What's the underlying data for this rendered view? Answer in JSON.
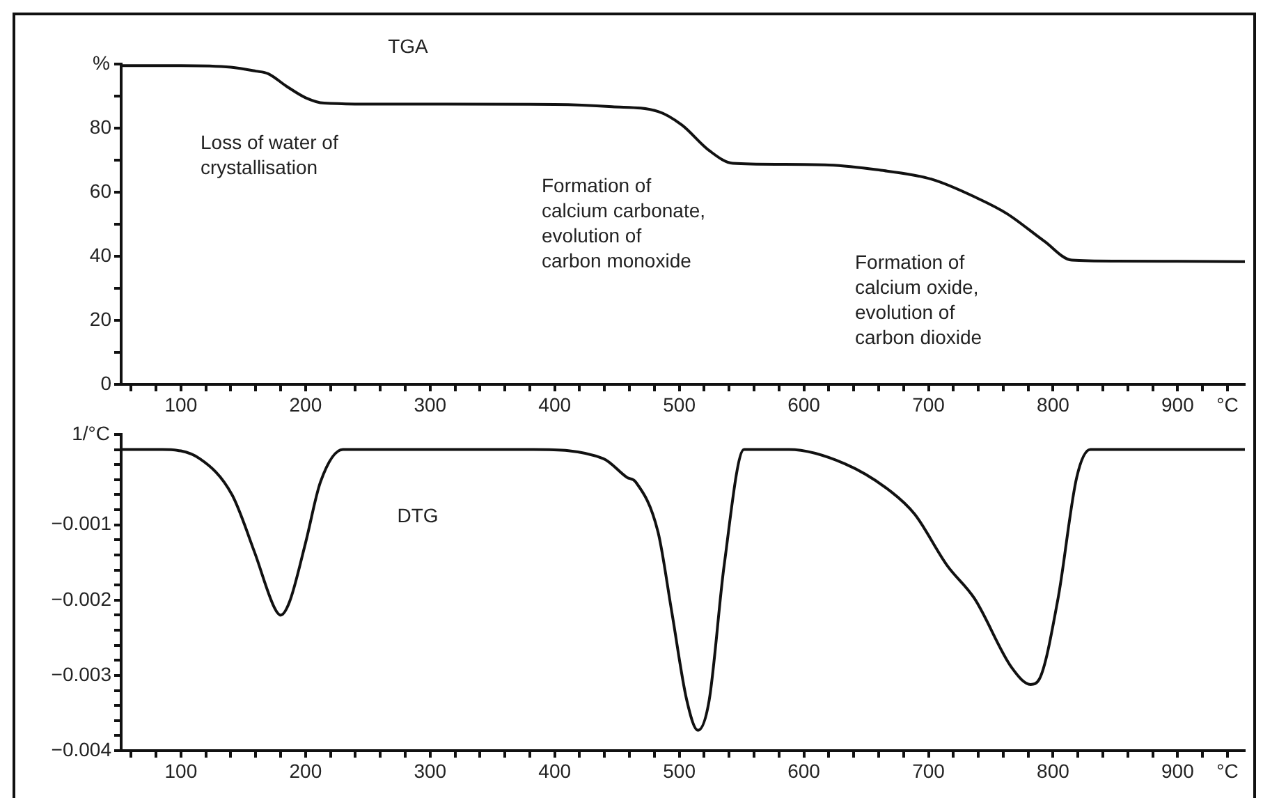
{
  "chart_data": [
    {
      "type": "line",
      "title": "TGA",
      "ylabel": "%",
      "marker": "none",
      "line_style": "solid",
      "annotations": [
        "Loss of water of\ncrystallisation",
        "Formation of\ncalcium carbonate,\nevolution of\ncarbon monoxide",
        "Formation of\ncalcium oxide,\nevolution of\ncarbon dioxide"
      ],
      "series": [
        {
          "color": "#111111",
          "x": [
            52,
            100,
            140,
            160,
            170,
            185,
            200,
            215,
            250,
            300,
            400,
            446,
            483,
            502,
            524,
            543,
            580,
            620,
            659,
            703,
            740,
            763,
            793,
            815,
            850,
            900,
            954
          ],
          "values": [
            99.5,
            99.5,
            99,
            97.8,
            97,
            93,
            89.5,
            87.8,
            87.5,
            87.5,
            87.4,
            86.7,
            85.2,
            81,
            73,
            69,
            68.7,
            68.5,
            67,
            64,
            58,
            53.3,
            44.7,
            38.8,
            38.5,
            38.4,
            38.3
          ]
        }
      ],
      "xlim": [
        52,
        954
      ],
      "ylim": [
        0,
        100
      ],
      "xticks": [
        {
          "value": 60,
          "label": null
        },
        {
          "value": 80,
          "label": null
        },
        100,
        {
          "value": 120,
          "label": null
        },
        {
          "value": 140,
          "label": null
        },
        {
          "value": 160,
          "label": null
        },
        {
          "value": 180,
          "label": null
        },
        200,
        {
          "value": 220,
          "label": null
        },
        {
          "value": 240,
          "label": null
        },
        {
          "value": 260,
          "label": null
        },
        {
          "value": 280,
          "label": null
        },
        300,
        {
          "value": 320,
          "label": null
        },
        {
          "value": 340,
          "label": null
        },
        {
          "value": 360,
          "label": null
        },
        {
          "value": 380,
          "label": null
        },
        400,
        {
          "value": 420,
          "label": null
        },
        {
          "value": 440,
          "label": null
        },
        {
          "value": 460,
          "label": null
        },
        {
          "value": 480,
          "label": null
        },
        500,
        {
          "value": 520,
          "label": null
        },
        {
          "value": 540,
          "label": null
        },
        {
          "value": 560,
          "label": null
        },
        {
          "value": 580,
          "label": null
        },
        600,
        {
          "value": 620,
          "label": null
        },
        {
          "value": 640,
          "label": null
        },
        {
          "value": 660,
          "label": null
        },
        {
          "value": 680,
          "label": null
        },
        700,
        {
          "value": 720,
          "label": null
        },
        {
          "value": 740,
          "label": null
        },
        {
          "value": 760,
          "label": null
        },
        {
          "value": 780,
          "label": null
        },
        800,
        {
          "value": 820,
          "label": null
        },
        {
          "value": 840,
          "label": null
        },
        {
          "value": 860,
          "label": null
        },
        {
          "value": 880,
          "label": null
        },
        900,
        {
          "value": 920,
          "label": null
        },
        {
          "value": 940,
          "label": "°C"
        }
      ],
      "yticks": [
        0,
        {
          "value": 10,
          "label": null
        },
        20,
        {
          "value": 30,
          "label": null
        },
        40,
        {
          "value": 50,
          "label": null
        },
        60,
        {
          "value": 70,
          "label": null
        },
        80,
        {
          "value": 90,
          "label": null
        },
        {
          "value": 100,
          "label": null
        }
      ]
    },
    {
      "type": "line",
      "title": "DTG",
      "ylabel": "1/°C",
      "marker": "none",
      "line_style": "solid",
      "series": [
        {
          "color": "#111111",
          "x": [
            52,
            85,
            115,
            141,
            159,
            175,
            180,
            187,
            200,
            212,
            230,
            300,
            383,
            439,
            458,
            465,
            483,
            494,
            506,
            515,
            524,
            536,
            552,
            588,
            633,
            670,
            689,
            715,
            737,
            767,
            782,
            789,
            804,
            819,
            830,
            900,
            954
          ],
          "values": [
            0,
            0,
            -0.00012,
            -0.0006,
            -0.00136,
            -0.0021,
            -0.0022,
            -0.00203,
            -0.00124,
            -0.00043,
            0,
            0,
            0,
            -0.00012,
            -0.00037,
            -0.00043,
            -0.0011,
            -0.00216,
            -0.00333,
            -0.00373,
            -0.00333,
            -0.00154,
            0,
            0,
            -0.00019,
            -0.00056,
            -0.00086,
            -0.00154,
            -0.00198,
            -0.0029,
            -0.00312,
            -0.00305,
            -0.00198,
            -0.00037,
            0,
            0,
            0
          ]
        }
      ],
      "xlim": [
        52,
        954
      ],
      "ylim": [
        -0.004,
        0.0002
      ],
      "xticks": [
        {
          "value": 60,
          "label": null
        },
        {
          "value": 80,
          "label": null
        },
        100,
        {
          "value": 120,
          "label": null
        },
        {
          "value": 140,
          "label": null
        },
        {
          "value": 160,
          "label": null
        },
        {
          "value": 180,
          "label": null
        },
        200,
        {
          "value": 220,
          "label": null
        },
        {
          "value": 240,
          "label": null
        },
        {
          "value": 260,
          "label": null
        },
        {
          "value": 280,
          "label": null
        },
        300,
        {
          "value": 320,
          "label": null
        },
        {
          "value": 340,
          "label": null
        },
        {
          "value": 360,
          "label": null
        },
        {
          "value": 380,
          "label": null
        },
        400,
        {
          "value": 420,
          "label": null
        },
        {
          "value": 440,
          "label": null
        },
        {
          "value": 460,
          "label": null
        },
        {
          "value": 480,
          "label": null
        },
        500,
        {
          "value": 520,
          "label": null
        },
        {
          "value": 540,
          "label": null
        },
        {
          "value": 560,
          "label": null
        },
        {
          "value": 580,
          "label": null
        },
        600,
        {
          "value": 620,
          "label": null
        },
        {
          "value": 640,
          "label": null
        },
        {
          "value": 660,
          "label": null
        },
        {
          "value": 680,
          "label": null
        },
        700,
        {
          "value": 720,
          "label": null
        },
        {
          "value": 740,
          "label": null
        },
        {
          "value": 760,
          "label": null
        },
        {
          "value": 780,
          "label": null
        },
        800,
        {
          "value": 820,
          "label": null
        },
        {
          "value": 840,
          "label": null
        },
        {
          "value": 860,
          "label": null
        },
        {
          "value": 880,
          "label": null
        },
        900,
        {
          "value": 920,
          "label": null
        },
        {
          "value": 940,
          "label": "°C"
        }
      ],
      "yticks": [
        {
          "value": -0.004,
          "label": "−0.004"
        },
        {
          "value": -0.0038,
          "label": null
        },
        {
          "value": -0.0036,
          "label": null
        },
        {
          "value": -0.0034,
          "label": null
        },
        {
          "value": -0.0032,
          "label": null
        },
        {
          "value": -0.003,
          "label": "−0.003"
        },
        {
          "value": -0.0028,
          "label": null
        },
        {
          "value": -0.0026,
          "label": null
        },
        {
          "value": -0.0024,
          "label": null
        },
        {
          "value": -0.0022,
          "label": null
        },
        {
          "value": -0.002,
          "label": "−0.002"
        },
        {
          "value": -0.0018,
          "label": null
        },
        {
          "value": -0.0016,
          "label": null
        },
        {
          "value": -0.0014,
          "label": null
        },
        {
          "value": -0.0012,
          "label": null
        },
        {
          "value": -0.001,
          "label": "−0.001"
        },
        {
          "value": -0.0008,
          "label": null
        },
        {
          "value": -0.0006,
          "label": null
        },
        {
          "value": -0.0004,
          "label": null
        },
        {
          "value": -0.0002,
          "label": null
        },
        {
          "value": 0,
          "label": null
        },
        {
          "value": 0.0002,
          "label": null
        }
      ]
    }
  ]
}
